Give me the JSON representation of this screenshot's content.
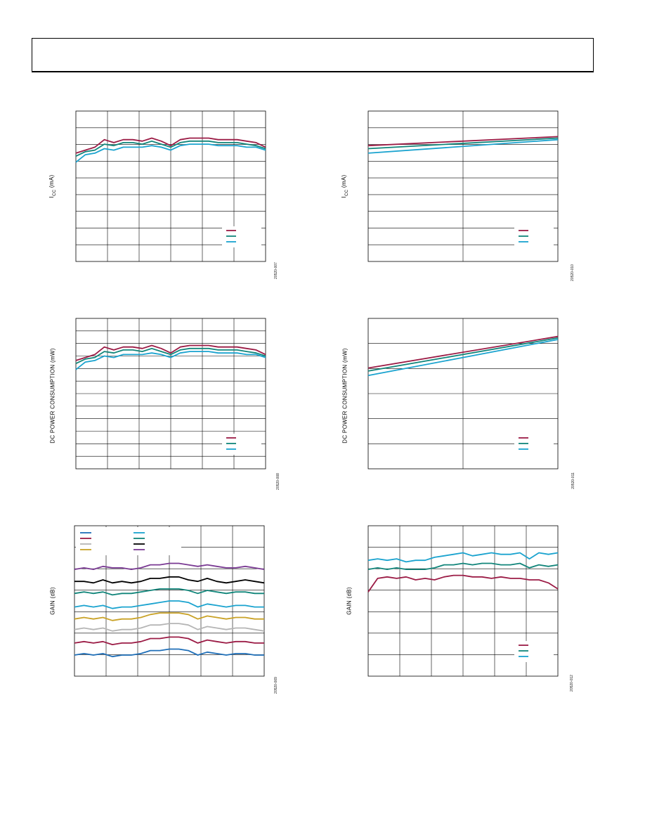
{
  "colors": {
    "maroon": "#9b1b45",
    "teal": "#11857a",
    "cyan": "#1aa3cf",
    "blue": "#1f6fb8",
    "gray": "#b5b5b5",
    "gold": "#c9a227",
    "black": "#000000",
    "purple": "#7a3a93"
  },
  "chart_data": [
    {
      "id": "c1",
      "type": "line",
      "ylabel_main": "I",
      "ylabel_sub": "CC",
      "ylabel_rest": " (mA)",
      "figure_number": "20520-007",
      "grid": true,
      "xgrid": 6,
      "ygrid": 9,
      "legend": "bottom-right",
      "legend_colors": [
        "maroon",
        "teal",
        "cyan"
      ],
      "series": [
        {
          "color": "maroon",
          "values": [
            0.72,
            0.74,
            0.76,
            0.81,
            0.79,
            0.81,
            0.81,
            0.8,
            0.82,
            0.8,
            0.77,
            0.81,
            0.82,
            0.82,
            0.82,
            0.81,
            0.81,
            0.81,
            0.8,
            0.79,
            0.76
          ]
        },
        {
          "color": "teal",
          "values": [
            0.7,
            0.73,
            0.74,
            0.78,
            0.77,
            0.79,
            0.79,
            0.78,
            0.8,
            0.78,
            0.76,
            0.79,
            0.8,
            0.8,
            0.8,
            0.79,
            0.79,
            0.79,
            0.78,
            0.77,
            0.75
          ]
        },
        {
          "color": "cyan",
          "values": [
            0.66,
            0.71,
            0.72,
            0.75,
            0.74,
            0.76,
            0.76,
            0.76,
            0.77,
            0.76,
            0.74,
            0.77,
            0.78,
            0.78,
            0.78,
            0.77,
            0.77,
            0.77,
            0.76,
            0.76,
            0.74
          ]
        }
      ]
    },
    {
      "id": "c2",
      "type": "line",
      "ylabel_main": "I",
      "ylabel_sub": "CC",
      "ylabel_rest": " (mA)",
      "figure_number": "20520-010",
      "grid": true,
      "xgrid": 2,
      "ygrid": 9,
      "legend": "bottom-right",
      "legend_colors": [
        "maroon",
        "teal",
        "cyan"
      ],
      "series": [
        {
          "color": "maroon",
          "values": [
            0.77,
            0.83
          ]
        },
        {
          "color": "teal",
          "values": [
            0.75,
            0.82
          ]
        },
        {
          "color": "cyan",
          "values": [
            0.72,
            0.81
          ]
        }
      ]
    },
    {
      "id": "c3",
      "type": "line",
      "ylabel_main": "DC POWER CONSUMPTION (mW)",
      "ylabel_sub": "",
      "ylabel_rest": "",
      "figure_number": "20520-008",
      "grid": true,
      "xgrid": 6,
      "ygrid": 12,
      "legend": "bottom-right",
      "legend_colors": [
        "maroon",
        "teal",
        "cyan"
      ],
      "series": [
        {
          "color": "maroon",
          "values": [
            0.72,
            0.74,
            0.76,
            0.81,
            0.79,
            0.81,
            0.81,
            0.8,
            0.82,
            0.8,
            0.77,
            0.81,
            0.82,
            0.82,
            0.82,
            0.81,
            0.81,
            0.81,
            0.8,
            0.79,
            0.76
          ]
        },
        {
          "color": "teal",
          "values": [
            0.7,
            0.73,
            0.74,
            0.78,
            0.77,
            0.79,
            0.79,
            0.78,
            0.8,
            0.78,
            0.76,
            0.79,
            0.8,
            0.8,
            0.8,
            0.79,
            0.79,
            0.79,
            0.78,
            0.77,
            0.75
          ]
        },
        {
          "color": "cyan",
          "values": [
            0.66,
            0.71,
            0.72,
            0.75,
            0.74,
            0.76,
            0.76,
            0.76,
            0.77,
            0.76,
            0.74,
            0.77,
            0.78,
            0.78,
            0.78,
            0.77,
            0.77,
            0.77,
            0.76,
            0.76,
            0.74
          ]
        }
      ]
    },
    {
      "id": "c4",
      "type": "line",
      "ylabel_main": "DC POWER CONSUMPTION (mW)",
      "ylabel_sub": "",
      "ylabel_rest": "",
      "figure_number": "20520-011",
      "grid": true,
      "xgrid": 2,
      "ygrid": 6,
      "legend": "bottom-right",
      "legend_colors": [
        "maroon",
        "teal",
        "cyan"
      ],
      "series": [
        {
          "color": "maroon",
          "values": [
            0.67,
            0.88
          ]
        },
        {
          "color": "teal",
          "values": [
            0.65,
            0.87
          ]
        },
        {
          "color": "cyan",
          "values": [
            0.62,
            0.86
          ]
        }
      ]
    },
    {
      "id": "c5",
      "type": "line",
      "ylabel_main": "GAIN (dB)",
      "ylabel_sub": "",
      "ylabel_rest": "",
      "figure_number": "20520-009",
      "grid": true,
      "xgrid": 6,
      "ygrid": 7,
      "legend": "top-left",
      "legend_colors": [
        "blue",
        "maroon",
        "gray",
        "gold",
        "cyan",
        "teal",
        "black",
        "purple"
      ],
      "series": [
        {
          "color": "purple",
          "values": [
            0.71,
            0.72,
            0.71,
            0.73,
            0.72,
            0.72,
            0.71,
            0.72,
            0.74,
            0.74,
            0.75,
            0.75,
            0.74,
            0.73,
            0.74,
            0.73,
            0.72,
            0.72,
            0.73,
            0.72,
            0.71
          ]
        },
        {
          "color": "black",
          "values": [
            0.63,
            0.63,
            0.62,
            0.64,
            0.62,
            0.63,
            0.62,
            0.63,
            0.65,
            0.65,
            0.66,
            0.66,
            0.64,
            0.63,
            0.65,
            0.63,
            0.62,
            0.63,
            0.64,
            0.63,
            0.62
          ]
        },
        {
          "color": "teal",
          "values": [
            0.55,
            0.56,
            0.55,
            0.56,
            0.54,
            0.55,
            0.55,
            0.56,
            0.57,
            0.58,
            0.58,
            0.58,
            0.57,
            0.55,
            0.57,
            0.56,
            0.55,
            0.56,
            0.56,
            0.55,
            0.55
          ]
        },
        {
          "color": "cyan",
          "values": [
            0.46,
            0.47,
            0.46,
            0.47,
            0.45,
            0.46,
            0.46,
            0.47,
            0.48,
            0.49,
            0.5,
            0.5,
            0.49,
            0.46,
            0.48,
            0.47,
            0.46,
            0.47,
            0.47,
            0.46,
            0.46
          ]
        },
        {
          "color": "gold",
          "values": [
            0.38,
            0.39,
            0.38,
            0.39,
            0.37,
            0.38,
            0.38,
            0.39,
            0.41,
            0.42,
            0.42,
            0.42,
            0.41,
            0.38,
            0.4,
            0.39,
            0.38,
            0.39,
            0.39,
            0.38,
            0.38
          ]
        },
        {
          "color": "gray",
          "values": [
            0.31,
            0.32,
            0.31,
            0.32,
            0.3,
            0.31,
            0.31,
            0.32,
            0.34,
            0.34,
            0.35,
            0.35,
            0.34,
            0.31,
            0.33,
            0.32,
            0.31,
            0.32,
            0.32,
            0.31,
            0.3
          ]
        },
        {
          "color": "maroon",
          "values": [
            0.22,
            0.23,
            0.22,
            0.23,
            0.21,
            0.22,
            0.22,
            0.23,
            0.25,
            0.25,
            0.26,
            0.26,
            0.25,
            0.22,
            0.24,
            0.23,
            0.22,
            0.23,
            0.23,
            0.22,
            0.22
          ]
        },
        {
          "color": "blue",
          "values": [
            0.14,
            0.15,
            0.14,
            0.15,
            0.13,
            0.14,
            0.14,
            0.15,
            0.17,
            0.17,
            0.18,
            0.18,
            0.17,
            0.14,
            0.16,
            0.15,
            0.14,
            0.15,
            0.15,
            0.14,
            0.14
          ]
        }
      ]
    },
    {
      "id": "c6",
      "type": "line",
      "ylabel_main": "GAIN (dB)",
      "ylabel_sub": "",
      "ylabel_rest": "",
      "figure_number": "20520-012",
      "grid": true,
      "xgrid": 6,
      "ygrid": 7,
      "legend": "bottom-right",
      "legend_colors": [
        "maroon",
        "teal",
        "cyan"
      ],
      "series": [
        {
          "color": "cyan",
          "values": [
            0.77,
            0.78,
            0.77,
            0.78,
            0.76,
            0.77,
            0.77,
            0.79,
            0.8,
            0.81,
            0.82,
            0.8,
            0.81,
            0.82,
            0.81,
            0.81,
            0.82,
            0.78,
            0.82,
            0.81,
            0.82
          ]
        },
        {
          "color": "teal",
          "values": [
            0.71,
            0.72,
            0.71,
            0.72,
            0.71,
            0.71,
            0.71,
            0.72,
            0.74,
            0.74,
            0.75,
            0.74,
            0.75,
            0.75,
            0.74,
            0.74,
            0.75,
            0.72,
            0.74,
            0.73,
            0.74
          ]
        },
        {
          "color": "maroon",
          "values": [
            0.56,
            0.65,
            0.66,
            0.65,
            0.66,
            0.64,
            0.65,
            0.64,
            0.66,
            0.67,
            0.67,
            0.66,
            0.66,
            0.65,
            0.66,
            0.65,
            0.65,
            0.64,
            0.64,
            0.62,
            0.58
          ]
        }
      ]
    }
  ]
}
